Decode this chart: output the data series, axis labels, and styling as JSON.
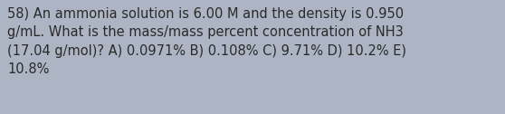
{
  "text": "58) An ammonia solution is 6.00 M and the density is 0.950\ng/mL. What is the mass/mass percent concentration of NH3\n(17.04 g/mol)? A) 0.0971% B) 0.108% C) 9.71% D) 10.2% E)\n10.8%",
  "background_color": "#adb5c4",
  "text_color": "#2a2a2a",
  "font_size": 10.5,
  "fig_width": 5.58,
  "fig_height": 1.26,
  "dpi": 100
}
